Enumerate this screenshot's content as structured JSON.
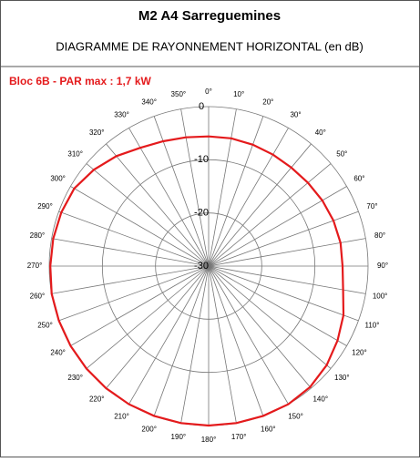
{
  "chart_data": {
    "type": "polar",
    "title": "M2 A4 Sarreguemines",
    "subtitle": "DIAGRAMME DE RAYONNEMENT HORIZONTAL  (en dB)",
    "series": [
      {
        "name": "Bloc 6B - PAR max : 1,7 kW",
        "color": "#e41a1c",
        "values": [
          -5.6,
          -5.6,
          -5.7,
          -5.8,
          -5.8,
          -5.6,
          -5.3,
          -5.0,
          -4.8,
          -4.8,
          -4.3,
          -3.0,
          -2.0,
          -1.0,
          -0.3,
          0,
          0,
          0,
          0,
          0,
          0,
          0,
          0,
          0,
          0,
          0,
          0,
          -0.2,
          -0.3,
          -0.5,
          -0.8,
          -1.8,
          -3.0,
          -4.3,
          -5.0,
          -5.4
        ]
      }
    ],
    "theta": [
      0,
      10,
      20,
      30,
      40,
      50,
      60,
      70,
      80,
      90,
      100,
      110,
      120,
      130,
      140,
      150,
      160,
      170,
      180,
      190,
      200,
      210,
      220,
      230,
      240,
      250,
      260,
      270,
      280,
      290,
      300,
      310,
      320,
      330,
      340,
      350
    ],
    "categories": [
      "0°",
      "10°",
      "20°",
      "30°",
      "40°",
      "50°",
      "60°",
      "70°",
      "80°",
      "90°",
      "100°",
      "110°",
      "120°",
      "130°",
      "140°",
      "150°",
      "160°",
      "170°",
      "180°",
      "190°",
      "200°",
      "210°",
      "220°",
      "230°",
      "240°",
      "250°",
      "260°",
      "270°",
      "280°",
      "290°",
      "300°",
      "310°",
      "320°",
      "330°",
      "340°",
      "350°"
    ],
    "rlim": [
      -30,
      0
    ],
    "rticks": [
      0,
      -10,
      -20,
      -30
    ],
    "grid": true
  }
}
